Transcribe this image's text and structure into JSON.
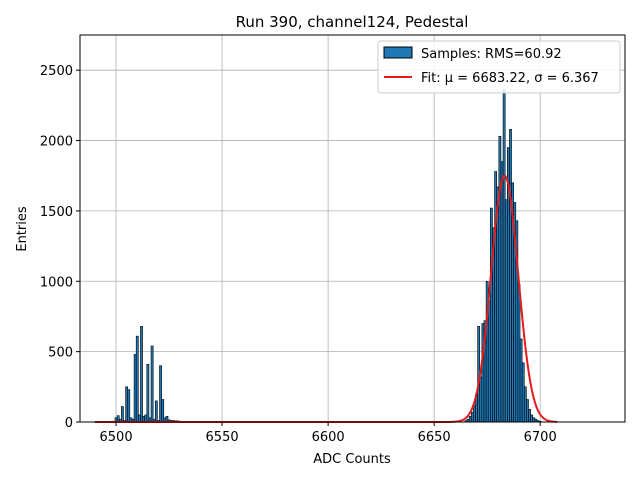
{
  "chart_data": {
    "type": "bar",
    "title": "Run 390, channel124, Pedestal",
    "xlabel": "ADC Counts",
    "ylabel": "Entries",
    "xlim": [
      6483,
      6740
    ],
    "ylim": [
      0,
      2750
    ],
    "xticks": [
      6500,
      6550,
      6600,
      6650,
      6700
    ],
    "yticks": [
      0,
      500,
      1000,
      1500,
      2000,
      2500
    ],
    "grid": true,
    "legend_position": "top-right",
    "colors": {
      "bar_fill": "#1f77b4",
      "bar_edge": "#000000",
      "fit_line": "#e41a1c",
      "grid": "#b0b0b0"
    },
    "legend": [
      {
        "label": "Samples: RMS=60.92",
        "kind": "bar"
      },
      {
        "label": "Fit: μ = 6683.22, σ = 6.367",
        "kind": "line"
      }
    ],
    "bin_width": 1,
    "histogram": {
      "x": [
        6500,
        6501,
        6502,
        6503,
        6504,
        6505,
        6506,
        6507,
        6508,
        6509,
        6510,
        6511,
        6512,
        6513,
        6514,
        6515,
        6516,
        6517,
        6518,
        6519,
        6520,
        6521,
        6522,
        6523,
        6524,
        6525,
        6526,
        6527,
        6528,
        6529,
        6530,
        6531,
        6532,
        6533,
        6665,
        6666,
        6667,
        6668,
        6669,
        6670,
        6671,
        6672,
        6673,
        6674,
        6675,
        6676,
        6677,
        6678,
        6679,
        6680,
        6681,
        6682,
        6683,
        6684,
        6685,
        6686,
        6687,
        6688,
        6689,
        6690,
        6691,
        6692,
        6693,
        6694,
        6695,
        6696,
        6697,
        6698,
        6699,
        6700
      ],
      "values": [
        30,
        45,
        20,
        110,
        10,
        250,
        230,
        30,
        20,
        480,
        610,
        50,
        680,
        40,
        50,
        410,
        30,
        540,
        20,
        150,
        10,
        400,
        160,
        30,
        40,
        15,
        10,
        10,
        8,
        8,
        6,
        5,
        4,
        3,
        10,
        20,
        40,
        70,
        120,
        200,
        680,
        320,
        700,
        720,
        1000,
        860,
        1520,
        1380,
        1780,
        1670,
        2030,
        1850,
        2360,
        1580,
        1950,
        2080,
        1700,
        1560,
        1430,
        980,
        590,
        420,
        250,
        160,
        90,
        50,
        30,
        20,
        10,
        5
      ]
    },
    "fit": {
      "mu": 6683.22,
      "sigma": 6.367,
      "amplitude": 1750,
      "x_range": [
        6490,
        6708
      ]
    }
  }
}
